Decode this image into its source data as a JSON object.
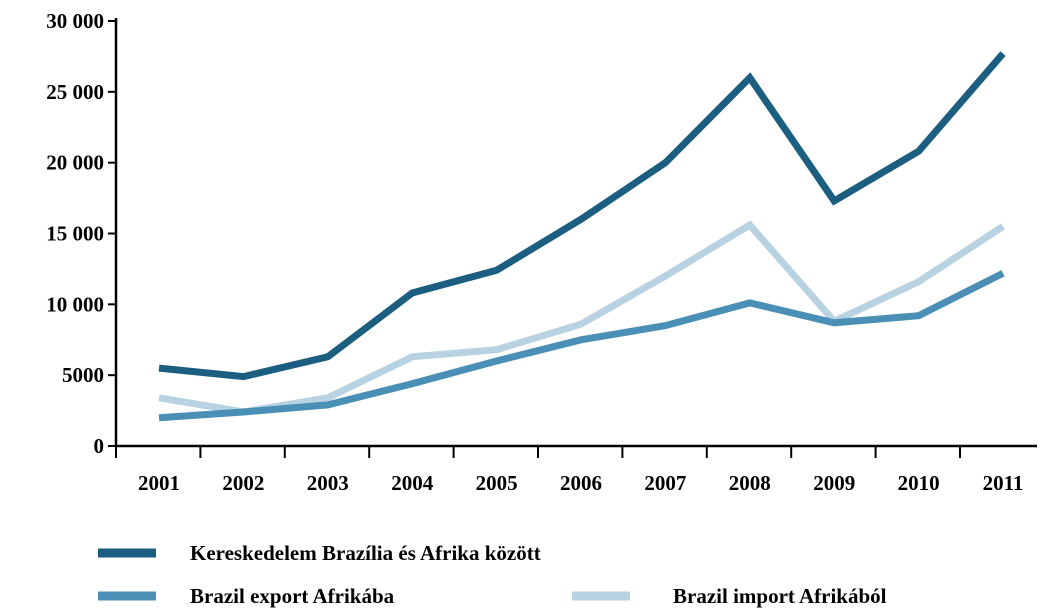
{
  "chart_data": {
    "type": "line",
    "title": "",
    "xlabel": "",
    "ylabel": "",
    "categories": [
      "2001",
      "2002",
      "2003",
      "2004",
      "2005",
      "2006",
      "2007",
      "2008",
      "2009",
      "2010",
      "2011"
    ],
    "ylim": [
      0,
      30000
    ],
    "y_ticks": [
      0,
      5000,
      10000,
      15000,
      20000,
      25000,
      30000
    ],
    "y_tick_labels": [
      "0",
      "5000",
      "10 000",
      "15 000",
      "20 000",
      "25 000",
      "30 000"
    ],
    "grid": false,
    "legend_position": "bottom",
    "series": [
      {
        "name": "Kereskedelem Brazília és Afrika között",
        "color": "#1b5e80",
        "values": [
          5500,
          4900,
          6300,
          10800,
          12400,
          16000,
          20000,
          26000,
          17300,
          20800,
          27700
        ]
      },
      {
        "name": "Brazil export Afrikába",
        "color": "#4a8fb5",
        "values": [
          2000,
          2400,
          2900,
          4400,
          6000,
          7500,
          8500,
          10100,
          8700,
          9200,
          12200
        ]
      },
      {
        "name": "Brazil import Afrikából",
        "color": "#b9d2e2",
        "values": [
          3400,
          2400,
          3400,
          6300,
          6800,
          8600,
          12000,
          15600,
          8800,
          11600,
          15500
        ]
      }
    ]
  }
}
